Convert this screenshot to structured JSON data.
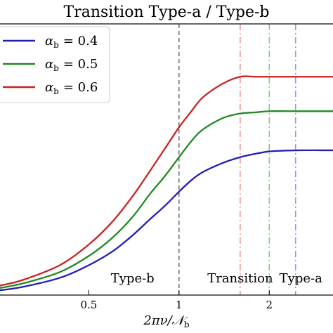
{
  "chart_data": {
    "type": "line",
    "title": "Transition Type-a / Type-b",
    "xlabel": "2πν/𝒩_b",
    "xscale": "log",
    "xlim": [
      0.25,
      3.3
    ],
    "ylim": [
      0,
      1.18
    ],
    "x_ticks": [
      {
        "value": 0.5,
        "label": "0.5"
      },
      {
        "value": 1,
        "label": "1"
      },
      {
        "value": 2,
        "label": "2"
      }
    ],
    "legend_position": "upper-left",
    "series": [
      {
        "name": "α_b = 0.4",
        "name_base": "α",
        "name_sub": "b",
        "name_value": "= 0.4",
        "color": "#1f1fb4",
        "x": [
          0.25,
          0.3,
          0.4,
          0.5,
          0.6,
          0.7,
          0.8,
          0.9,
          1.0,
          1.1,
          1.2,
          1.4,
          1.6,
          1.8,
          2.0,
          2.2,
          2.5,
          3.0,
          3.3
        ],
        "y": [
          0.02,
          0.035,
          0.075,
          0.13,
          0.19,
          0.26,
          0.33,
          0.39,
          0.45,
          0.5,
          0.535,
          0.575,
          0.6,
          0.615,
          0.625,
          0.628,
          0.63,
          0.63,
          0.63
        ]
      },
      {
        "name": "α_b = 0.5",
        "name_base": "α",
        "name_sub": "b",
        "name_value": "= 0.5",
        "color": "#218a21",
        "x": [
          0.25,
          0.3,
          0.4,
          0.5,
          0.6,
          0.7,
          0.8,
          0.9,
          1.0,
          1.1,
          1.2,
          1.4,
          1.6,
          1.8,
          2.0,
          2.5,
          3.0,
          3.3
        ],
        "y": [
          0.03,
          0.05,
          0.1,
          0.17,
          0.25,
          0.34,
          0.44,
          0.52,
          0.6,
          0.67,
          0.72,
          0.77,
          0.79,
          0.795,
          0.8,
          0.8,
          0.8,
          0.8
        ]
      },
      {
        "name": "α_b = 0.6",
        "name_base": "α",
        "name_sub": "b",
        "name_value": "= 0.6",
        "color": "#cc2222",
        "x": [
          0.25,
          0.3,
          0.4,
          0.5,
          0.6,
          0.7,
          0.8,
          0.9,
          1.0,
          1.1,
          1.2,
          1.4,
          1.6,
          1.8,
          2.0,
          2.5,
          3.0,
          3.3
        ],
        "y": [
          0.04,
          0.065,
          0.13,
          0.22,
          0.32,
          0.43,
          0.54,
          0.64,
          0.73,
          0.8,
          0.86,
          0.92,
          0.95,
          0.95,
          0.95,
          0.95,
          0.95,
          0.95
        ]
      }
    ],
    "vlines": [
      {
        "x": 1.0,
        "color": "#555555",
        "style": "dashed"
      },
      {
        "x": 1.6,
        "color": "#e08080",
        "style": "dashdot"
      },
      {
        "x": 2.0,
        "color": "#6fbf6f",
        "style": "dashdot"
      },
      {
        "x": 2.45,
        "color": "#8080e0",
        "style": "dashdot"
      }
    ],
    "annotations": [
      {
        "text": "Type-b",
        "x": 0.7
      },
      {
        "text": "Transition",
        "x": 1.6
      },
      {
        "text": "Type-a",
        "x": 2.55
      }
    ]
  }
}
